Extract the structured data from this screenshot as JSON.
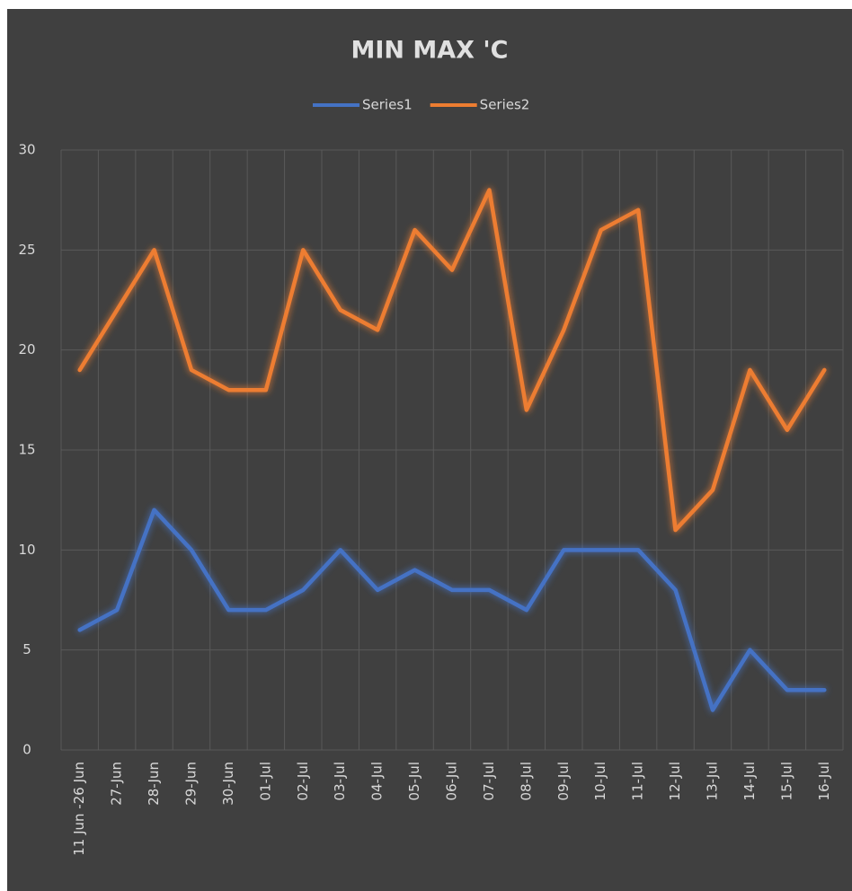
{
  "chart_data": {
    "type": "line",
    "title": "MIN MAX 'C",
    "categories": [
      "11 Jun -26 Jun",
      "27-Jun",
      "28-Jun",
      "29-Jun",
      "30-Jun",
      "01-Jul",
      "02-Jul",
      "03-Jul",
      "04-Jul",
      "05-Jul",
      "06-Jul",
      "07-Jul",
      "08-Jul",
      "09-Jul",
      "10-Jul",
      "11-Jul",
      "12-Jul",
      "13-Jul",
      "14-Jul",
      "15-Jul",
      "16-Jul"
    ],
    "series": [
      {
        "name": "Series1",
        "color": "#4472c4",
        "values": [
          6,
          7,
          12,
          10,
          7,
          7,
          8,
          10,
          8,
          9,
          8,
          8,
          7,
          10,
          10,
          10,
          8,
          2,
          5,
          3,
          3
        ]
      },
      {
        "name": "Series2",
        "color": "#ed7d31",
        "values": [
          19,
          22,
          25,
          19,
          18,
          18,
          25,
          22,
          21,
          26,
          24,
          28,
          17,
          21,
          26,
          27,
          11,
          13,
          19,
          16,
          19
        ]
      }
    ],
    "ylim": [
      0,
      30
    ],
    "yticks": [
      0,
      5,
      10,
      15,
      20,
      25,
      30
    ],
    "grid": true,
    "legend": "top"
  }
}
